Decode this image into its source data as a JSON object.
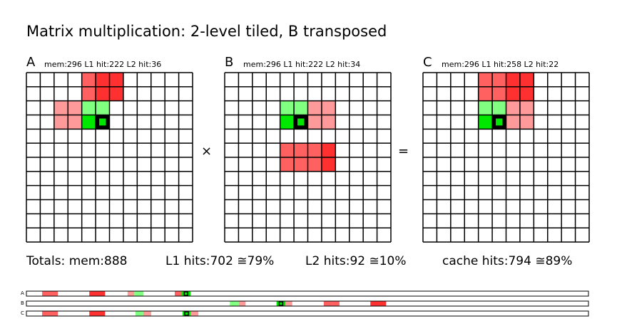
{
  "title": "Matrix multiplication: 2-level tiled, B transposed",
  "matrices": [
    {
      "name": "A",
      "stats": "mem:296 L1 hit:222 L2 hit:36"
    },
    {
      "name": "B",
      "stats": "mem:296 L1 hit:222 L2 hit:34"
    },
    {
      "name": "C",
      "stats": "mem:296 L1 hit:258 L2 hit:22"
    }
  ],
  "operators": {
    "times": "×",
    "equals": "="
  },
  "totals": {
    "mem": "Totals: mem:888",
    "l1": "L1 hits:702 ≅79%",
    "l2": "L2 hits:92  ≅10%",
    "cache": "cache hits:794 ≅89%"
  },
  "strip_labels": [
    "A",
    "B",
    "C"
  ],
  "grid": {
    "rows": 12,
    "cols": 12
  },
  "colors": {
    "red_dark": "#ff3030",
    "red_mid": "#ff6060",
    "red_light": "#ff9a9a",
    "green_dark": "#00e800",
    "green_light": "#80ff80",
    "outline": "#000000"
  },
  "cells": {
    "A": {
      "red_dark": [
        [
          0,
          5
        ],
        [
          0,
          6
        ],
        [
          1,
          5
        ],
        [
          1,
          6
        ]
      ],
      "red_mid": [
        [
          0,
          4
        ],
        [
          1,
          4
        ]
      ],
      "red_light": [
        [
          2,
          2
        ],
        [
          2,
          3
        ],
        [
          3,
          2
        ],
        [
          3,
          3
        ]
      ],
      "green_light": [
        [
          2,
          4
        ],
        [
          2,
          5
        ]
      ],
      "green_dark": [
        [
          3,
          4
        ],
        [
          3,
          5
        ]
      ],
      "current": [
        3,
        5
      ]
    },
    "B": {
      "red_dark": [
        [
          5,
          7
        ],
        [
          6,
          7
        ]
      ],
      "red_mid": [
        [
          5,
          4
        ],
        [
          5,
          5
        ],
        [
          5,
          6
        ],
        [
          6,
          4
        ],
        [
          6,
          5
        ],
        [
          6,
          6
        ]
      ],
      "red_light": [
        [
          2,
          6
        ],
        [
          2,
          7
        ],
        [
          3,
          6
        ],
        [
          3,
          7
        ]
      ],
      "green_light": [
        [
          2,
          4
        ],
        [
          2,
          5
        ]
      ],
      "green_dark": [
        [
          3,
          4
        ],
        [
          3,
          5
        ]
      ],
      "current": [
        3,
        5
      ]
    },
    "C": {
      "red_dark": [
        [
          0,
          6
        ],
        [
          0,
          7
        ],
        [
          1,
          6
        ],
        [
          1,
          7
        ]
      ],
      "red_mid": [
        [
          0,
          4
        ],
        [
          0,
          5
        ],
        [
          1,
          4
        ],
        [
          1,
          5
        ]
      ],
      "red_light": [
        [
          2,
          6
        ],
        [
          2,
          7
        ],
        [
          3,
          6
        ],
        [
          3,
          7
        ]
      ],
      "green_light": [
        [
          2,
          4
        ],
        [
          2,
          5
        ]
      ],
      "green_dark": [
        [
          3,
          4
        ],
        [
          3,
          5
        ]
      ],
      "current": [
        3,
        5
      ]
    }
  },
  "strips": {
    "A": [
      {
        "from": 0.028,
        "to": 0.056,
        "color": "red_mid"
      },
      {
        "from": 0.112,
        "to": 0.14,
        "color": "red_dark"
      },
      {
        "from": 0.18,
        "to": 0.192,
        "color": "red_light"
      },
      {
        "from": 0.192,
        "to": 0.208,
        "color": "green_light"
      },
      {
        "from": 0.264,
        "to": 0.276,
        "color": "red_mid"
      },
      {
        "from": 0.276,
        "to": 0.292,
        "color": "green_dark",
        "current": true
      }
    ],
    "B": [
      {
        "from": 0.362,
        "to": 0.378,
        "color": "green_light"
      },
      {
        "from": 0.378,
        "to": 0.39,
        "color": "red_light"
      },
      {
        "from": 0.445,
        "to": 0.461,
        "color": "green_dark",
        "current": true
      },
      {
        "from": 0.461,
        "to": 0.473,
        "color": "red_light"
      },
      {
        "from": 0.529,
        "to": 0.557,
        "color": "red_mid"
      },
      {
        "from": 0.612,
        "to": 0.64,
        "color": "red_dark"
      }
    ],
    "C": [
      {
        "from": 0.028,
        "to": 0.056,
        "color": "red_mid"
      },
      {
        "from": 0.112,
        "to": 0.14,
        "color": "red_dark"
      },
      {
        "from": 0.194,
        "to": 0.208,
        "color": "green_light"
      },
      {
        "from": 0.208,
        "to": 0.222,
        "color": "red_light"
      },
      {
        "from": 0.278,
        "to": 0.292,
        "color": "green_dark",
        "current": true
      },
      {
        "from": 0.292,
        "to": 0.306,
        "color": "red_light"
      }
    ]
  }
}
